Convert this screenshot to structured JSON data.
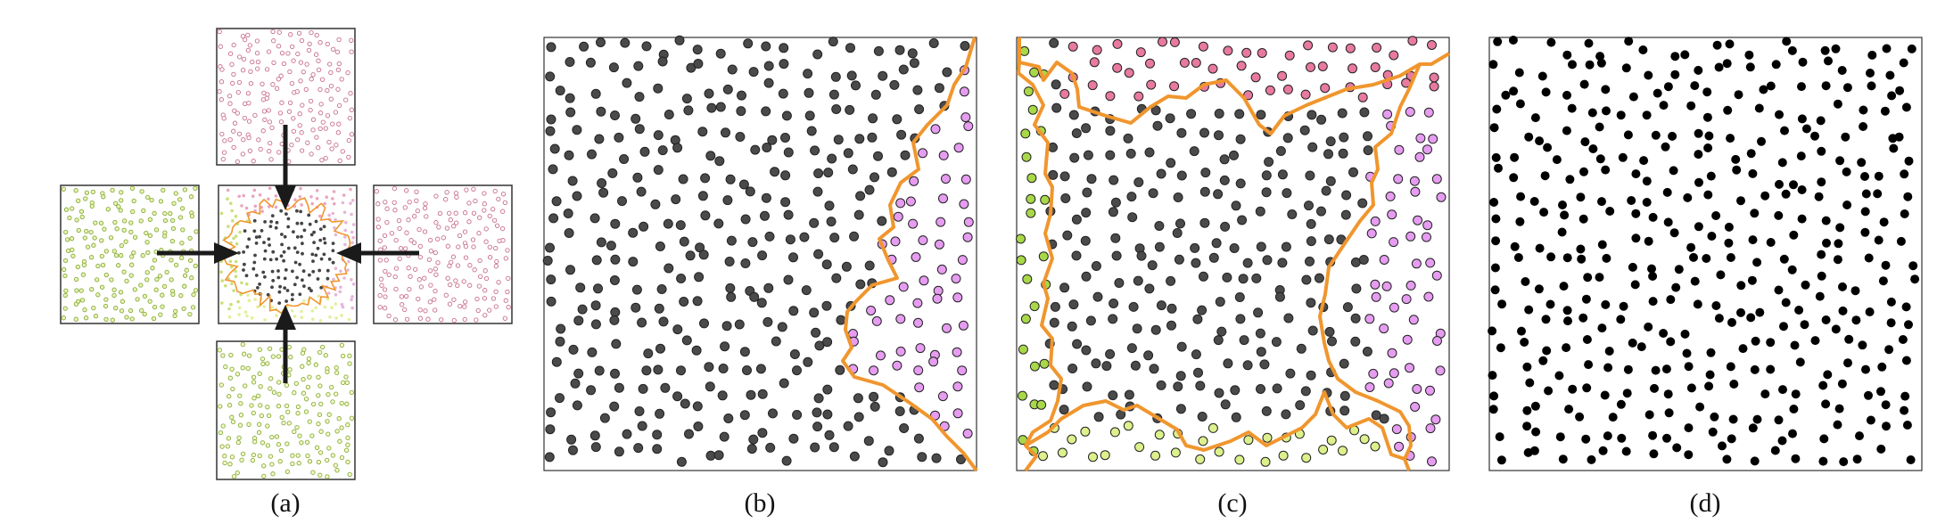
{
  "figure": {
    "panels": [
      {
        "id": "a",
        "caption": "(a)"
      },
      {
        "id": "b",
        "caption": "(b)"
      },
      {
        "id": "c",
        "caption": "(c)"
      },
      {
        "id": "d",
        "caption": "(d)"
      }
    ]
  },
  "colors": {
    "boundary": "#f0962e",
    "dark_point": "#4a4a4a",
    "black_point": "#000000",
    "pink_point": "#e8799f",
    "violet_point": "#e69cf0",
    "green_point": "#a8d848",
    "yellow_green_point": "#dcf08c",
    "tile_pink": "#c9708a",
    "tile_green": "#8aac3c",
    "arrow": "#1a1a1a",
    "frame": "#333333"
  }
}
